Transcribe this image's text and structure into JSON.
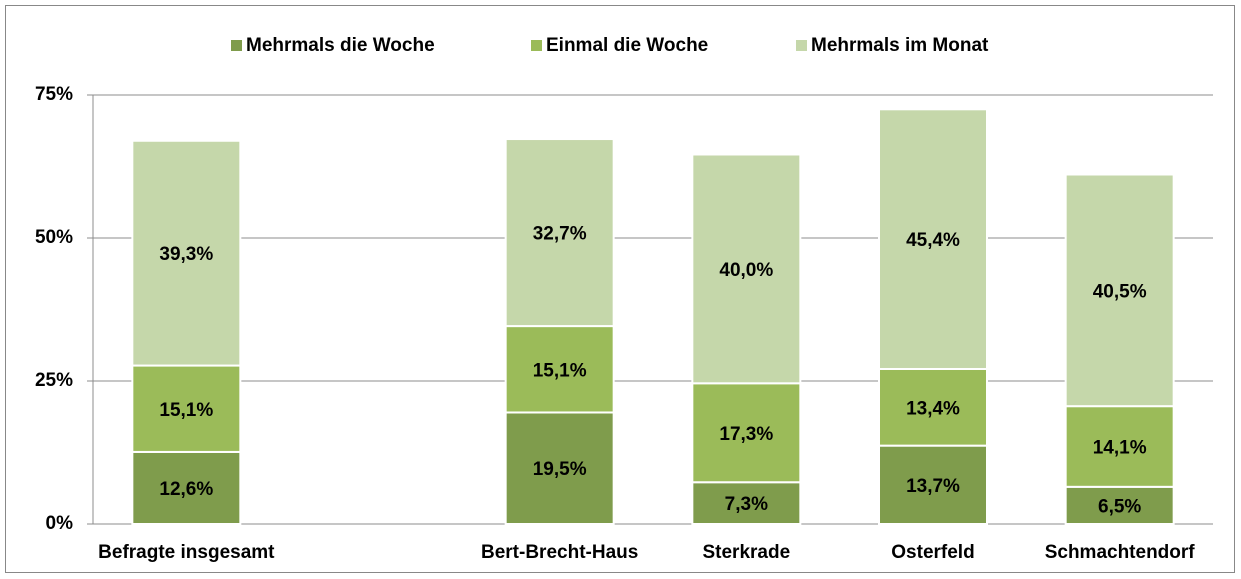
{
  "chart_data": {
    "type": "stacked_bar",
    "categories": [
      "Befragte insgesamt",
      null,
      "Bert-Brecht-Haus",
      "Sterkrade",
      "Osterfeld",
      "Schmachtendorf"
    ],
    "series": [
      {
        "name": "Mehrmals die Woche",
        "color": "#7f9c4c",
        "values": [
          12.6,
          null,
          19.5,
          7.3,
          13.7,
          6.5
        ],
        "value_labels": [
          "12,6%",
          null,
          "19,5%",
          "7,3%",
          "13,7%",
          "6,5%"
        ]
      },
      {
        "name": "Einmal die Woche",
        "color": "#9bbb59",
        "values": [
          15.1,
          null,
          15.1,
          17.3,
          13.4,
          14.1
        ],
        "value_labels": [
          "15,1%",
          null,
          "15,1%",
          "17,3%",
          "13,4%",
          "14,1%"
        ]
      },
      {
        "name": "Mehrmals im Monat",
        "color": "#c5d7aa",
        "values": [
          39.3,
          null,
          32.7,
          40.0,
          45.4,
          40.5
        ],
        "value_labels": [
          "39,3%",
          null,
          "32,7%",
          "40,0%",
          "45,4%",
          "40,5%"
        ]
      }
    ],
    "ylim": [
      0,
      75
    ],
    "yticks": [
      {
        "value": 0,
        "label": "0%"
      },
      {
        "value": 25,
        "label": "25%"
      },
      {
        "value": 50,
        "label": "50%"
      },
      {
        "value": 75,
        "label": "75%"
      }
    ],
    "grid": true,
    "legend": "top"
  }
}
